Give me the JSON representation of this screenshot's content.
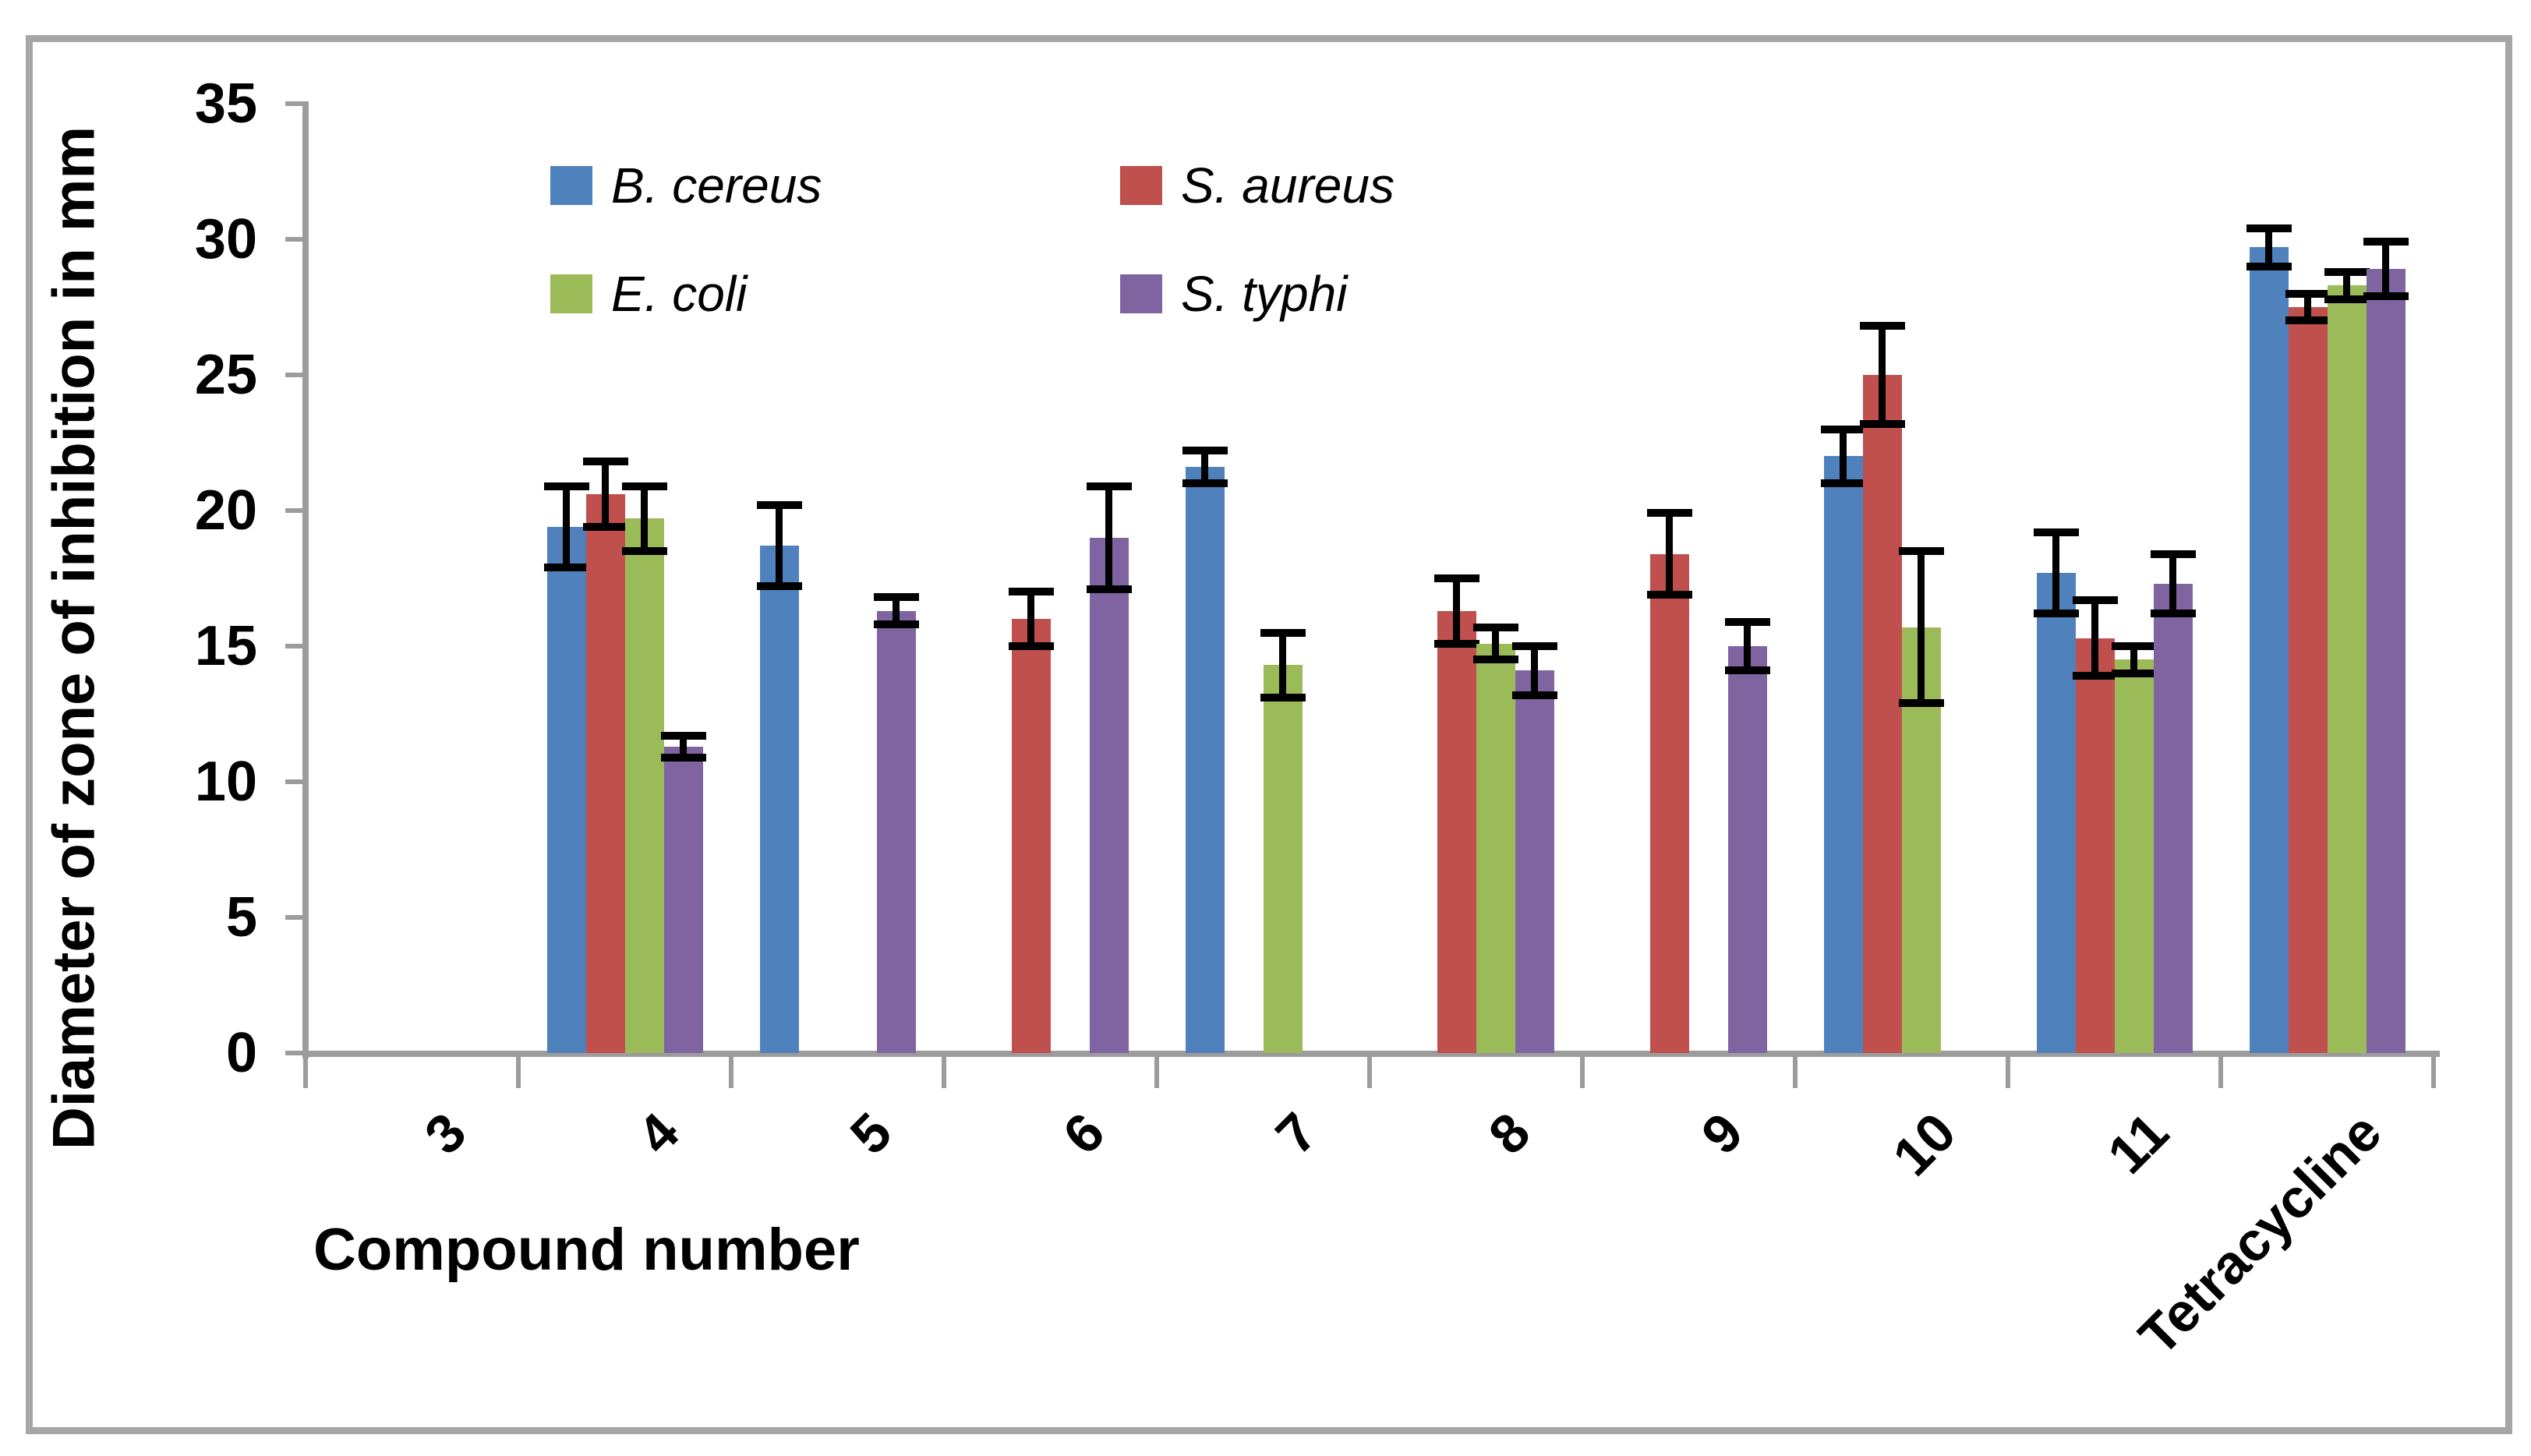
{
  "figure": {
    "y_axis_title": "Diameter of zone of inhibition in mm",
    "x_axis_title": "Compound number"
  },
  "legend": {
    "items": [
      {
        "label": "B. cereus",
        "color": "#4F81BD"
      },
      {
        "label": "S. aureus",
        "color": "#C0504D"
      },
      {
        "label": "E. coli",
        "color": "#9BBB59"
      },
      {
        "label": "S. typhi",
        "color": "#8064A2"
      }
    ]
  },
  "colors": {
    "axis_gray": "#9c9c9c",
    "frame_gray": "#a6a6a6",
    "error_bar_black": "#000000",
    "background": "#ffffff"
  },
  "chart_data": {
    "type": "bar",
    "title": "",
    "xlabel": "Compound number",
    "ylabel": "Diameter of zone of inhibition in mm",
    "categories": [
      "3",
      "4",
      "5",
      "6",
      "7",
      "8",
      "9",
      "10",
      "11",
      "Tetracycline"
    ],
    "ylim": [
      0,
      35
    ],
    "yticks": [
      0,
      5,
      10,
      15,
      20,
      25,
      30,
      35
    ],
    "grid": false,
    "legend_position": "top-center, two columns inside plot",
    "error_bars": true,
    "series": [
      {
        "name": "B. cereus",
        "color": "#4F81BD",
        "values": [
          0,
          19.4,
          18.7,
          0,
          21.6,
          0,
          0,
          22.0,
          17.7,
          29.7
        ],
        "errors": [
          0,
          1.5,
          1.5,
          0,
          0.6,
          0,
          0,
          1.0,
          1.5,
          0.7
        ]
      },
      {
        "name": "S. aureus",
        "color": "#C0504D",
        "values": [
          0,
          20.6,
          0,
          16.0,
          0,
          16.3,
          18.4,
          25.0,
          15.3,
          27.5
        ],
        "errors": [
          0,
          1.2,
          0,
          1.0,
          0,
          1.2,
          1.5,
          1.8,
          1.4,
          0.5
        ]
      },
      {
        "name": "E. coli",
        "color": "#9BBB59",
        "values": [
          0,
          19.7,
          0,
          0,
          14.3,
          15.1,
          0,
          15.7,
          14.5,
          28.3
        ],
        "errors": [
          0,
          1.2,
          0,
          0,
          1.2,
          0.6,
          0,
          2.8,
          0.5,
          0.5
        ]
      },
      {
        "name": "S. typhi",
        "color": "#8064A2",
        "values": [
          0,
          11.3,
          16.3,
          19.0,
          0,
          14.1,
          15.0,
          0,
          17.3,
          28.9
        ],
        "errors": [
          0,
          0.4,
          0.5,
          1.9,
          0,
          0.9,
          0.9,
          0,
          1.1,
          1.0
        ]
      }
    ]
  }
}
